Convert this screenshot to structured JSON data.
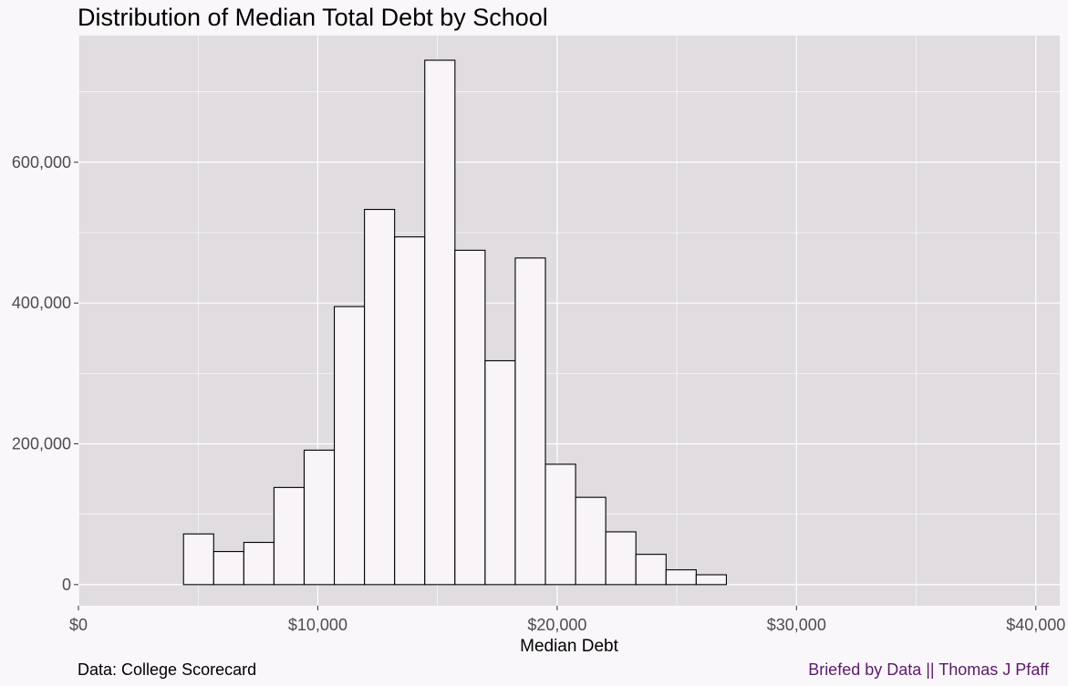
{
  "chart_data": {
    "type": "bar",
    "title": "Distribution of Median Total Debt by School",
    "xlabel": "Median Debt",
    "ylabel": "",
    "xlim": [
      0,
      41000
    ],
    "ylim": [
      -30000,
      780000
    ],
    "x_ticks": [
      {
        "value": 0,
        "label": "$0"
      },
      {
        "value": 10000,
        "label": "$10,000"
      },
      {
        "value": 20000,
        "label": "$20,000"
      },
      {
        "value": 30000,
        "label": "$30,000"
      },
      {
        "value": 40000,
        "label": "$40,000"
      }
    ],
    "y_ticks": [
      {
        "value": 0,
        "label": "0"
      },
      {
        "value": 200000,
        "label": "200,000"
      },
      {
        "value": 400000,
        "label": "400,000"
      },
      {
        "value": 600000,
        "label": "600,000"
      }
    ],
    "bins": [
      {
        "x0": 1870,
        "x1": 3130,
        "count": 0
      },
      {
        "x0": 3130,
        "x1": 4390,
        "count": 0
      },
      {
        "x0": 4390,
        "x1": 5650,
        "count": 72000
      },
      {
        "x0": 5650,
        "x1": 6910,
        "count": 47000
      },
      {
        "x0": 6910,
        "x1": 8170,
        "count": 60000
      },
      {
        "x0": 8170,
        "x1": 9430,
        "count": 138000
      },
      {
        "x0": 9430,
        "x1": 10690,
        "count": 191000
      },
      {
        "x0": 10690,
        "x1": 11950,
        "count": 395000
      },
      {
        "x0": 11950,
        "x1": 13210,
        "count": 533000
      },
      {
        "x0": 13210,
        "x1": 14470,
        "count": 494000
      },
      {
        "x0": 14470,
        "x1": 15730,
        "count": 745000
      },
      {
        "x0": 15730,
        "x1": 16990,
        "count": 475000
      },
      {
        "x0": 16990,
        "x1": 18250,
        "count": 318000
      },
      {
        "x0": 18250,
        "x1": 19510,
        "count": 464000
      },
      {
        "x0": 19510,
        "x1": 20770,
        "count": 171000
      },
      {
        "x0": 20770,
        "x1": 22030,
        "count": 124000
      },
      {
        "x0": 22030,
        "x1": 23290,
        "count": 75000
      },
      {
        "x0": 23290,
        "x1": 24550,
        "count": 43000
      },
      {
        "x0": 24550,
        "x1": 25810,
        "count": 21000
      },
      {
        "x0": 25810,
        "x1": 27070,
        "count": 14000
      },
      {
        "x0": 27070,
        "x1": 28330,
        "count": 0
      },
      {
        "x0": 28330,
        "x1": 29590,
        "count": 0
      },
      {
        "x0": 29590,
        "x1": 30850,
        "count": 0
      },
      {
        "x0": 30850,
        "x1": 32110,
        "count": 0
      },
      {
        "x0": 32110,
        "x1": 33370,
        "count": 0
      },
      {
        "x0": 33370,
        "x1": 34630,
        "count": 0
      },
      {
        "x0": 34630,
        "x1": 35890,
        "count": 0
      },
      {
        "x0": 35890,
        "x1": 37150,
        "count": 0
      },
      {
        "x0": 37150,
        "x1": 38410,
        "count": 0
      },
      {
        "x0": 38410,
        "x1": 39670,
        "count": 0
      }
    ],
    "grid": true,
    "legend": "none"
  },
  "captions": {
    "source": "Data: College Scorecard",
    "credit": "Briefed by Data || Thomas J Pfaff"
  },
  "colors": {
    "page_background": "#FAF7FA",
    "panel_background": "#E0DCE0",
    "grid": "#FFFFFF",
    "bar_fill": "#F8F4F8",
    "bar_outline": "#000000",
    "credit_text": "#5C1A6A"
  }
}
